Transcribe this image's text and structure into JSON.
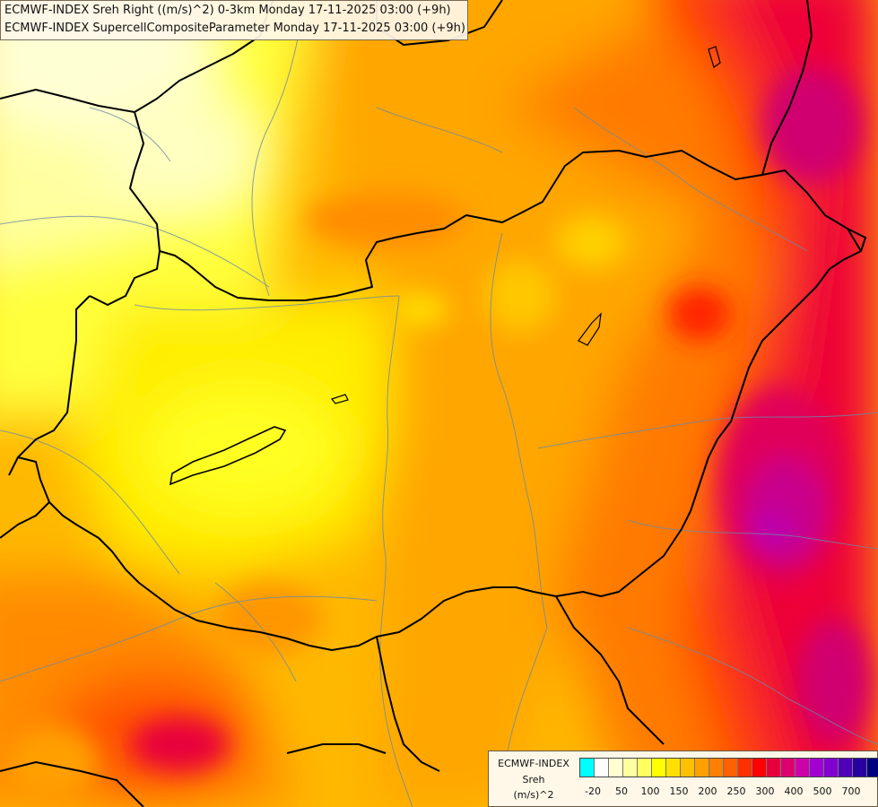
{
  "titles": {
    "line1": "ECMWF-INDEX Sreh Right ((m/s)^2) 0-3km Monday 17-11-2025 03:00 (+9h)",
    "line2": "ECMWF-INDEX SupercellCompositeParameter Monday 17-11-2025 03:00 (+9h)"
  },
  "legend": {
    "source": "ECMWF-INDEX",
    "parameter": "Sreh",
    "unit": "(m/s)^2",
    "colors": [
      "#00ffff",
      "#ffffff",
      "#ffffd0",
      "#ffffa0",
      "#ffff60",
      "#ffff00",
      "#ffe000",
      "#ffc000",
      "#ffa000",
      "#ff8000",
      "#ff6000",
      "#ff3000",
      "#ff0000",
      "#e8003c",
      "#dc0070",
      "#cc00a8",
      "#a000d0",
      "#8000d0",
      "#5000b8",
      "#2800a0",
      "#000080"
    ],
    "ticks": [
      "-20",
      "50",
      "100",
      "150",
      "200",
      "250",
      "300",
      "400",
      "500",
      "700"
    ]
  }
}
